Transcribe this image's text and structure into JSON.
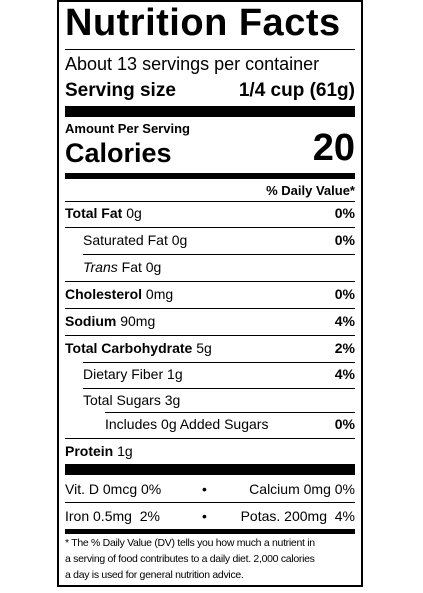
{
  "title": "Nutrition Facts",
  "servings_per_container": "About 13 servings per container",
  "serving_size": {
    "label": "Serving size",
    "value": "1/4 cup (61g)"
  },
  "amount_per_serving": "Amount Per Serving",
  "calories": {
    "label": "Calories",
    "value": "20"
  },
  "daily_value_header": "% Daily Value*",
  "nutrients": {
    "total_fat": {
      "label": "Total Fat",
      "amount": "0g",
      "dv": "0%"
    },
    "saturated_fat": {
      "label": "Saturated Fat",
      "amount": "0g",
      "dv": "0%"
    },
    "trans_fat": {
      "label_italic": "Trans",
      "label": "Fat",
      "amount": "0g"
    },
    "cholesterol": {
      "label": "Cholesterol",
      "amount": "0mg",
      "dv": "0%"
    },
    "sodium": {
      "label": "Sodium",
      "amount": "90mg",
      "dv": "4%"
    },
    "total_carbohydrate": {
      "label": "Total Carbohydrate",
      "amount": "5g",
      "dv": "2%"
    },
    "dietary_fiber": {
      "label": "Dietary Fiber",
      "amount": "1g",
      "dv": "4%"
    },
    "total_sugars": {
      "label": "Total Sugars",
      "amount": "3g"
    },
    "added_sugars": {
      "label": "Includes 0g Added Sugars",
      "dv": "0%"
    },
    "protein": {
      "label": "Protein",
      "amount": "1g"
    }
  },
  "vitamins": {
    "vit_d": "Vit. D 0mcg 0%",
    "calcium": "Calcium 0mg 0%",
    "iron": "Iron 0.5mg  2%",
    "potassium": "Potas. 200mg  4%",
    "bullet": "•"
  },
  "footnote": {
    "line1": "* The % Daily Value (DV) tells you how much a nutrient in",
    "line2": "a serving of food contributes to a daily diet. 2,000 calories",
    "line3": "a day is used for general nutrition advice."
  }
}
